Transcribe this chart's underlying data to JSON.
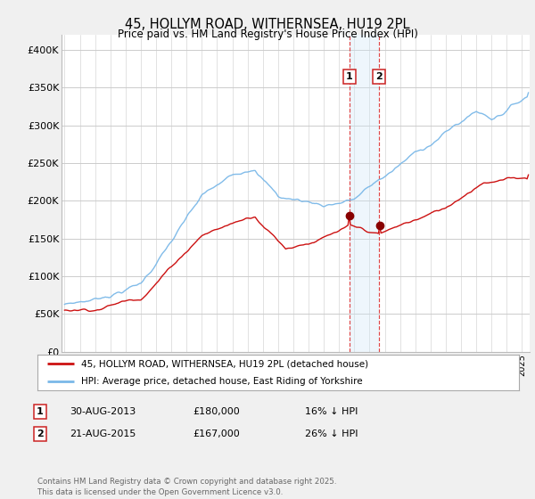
{
  "title_line1": "45, HOLLYM ROAD, WITHERNSEA, HU19 2PL",
  "title_line2": "Price paid vs. HM Land Registry's House Price Index (HPI)",
  "ylim": [
    0,
    420000
  ],
  "xlim_year": [
    1994.8,
    2025.5
  ],
  "yticks": [
    0,
    50000,
    100000,
    150000,
    200000,
    250000,
    300000,
    350000,
    400000
  ],
  "ytick_labels": [
    "£0",
    "£50K",
    "£100K",
    "£150K",
    "£200K",
    "£250K",
    "£300K",
    "£350K",
    "£400K"
  ],
  "hpi_color": "#7ab8e8",
  "price_color": "#cc1111",
  "sale1_year": 2013.66,
  "sale1_price": 180000,
  "sale1_date": "30-AUG-2013",
  "sale1_hpi_diff": "16% ↓ HPI",
  "sale2_year": 2015.64,
  "sale2_price": 167000,
  "sale2_date": "21-AUG-2015",
  "sale2_hpi_diff": "26% ↓ HPI",
  "legend_label1": "45, HOLLYM ROAD, WITHERNSEA, HU19 2PL (detached house)",
  "legend_label2": "HPI: Average price, detached house, East Riding of Yorkshire",
  "footer": "Contains HM Land Registry data © Crown copyright and database right 2025.\nThis data is licensed under the Open Government Licence v3.0.",
  "bg_color": "#f0f0f0",
  "plot_bg": "#ffffff",
  "grid_color": "#cccccc",
  "shade_color": "#d0e8f8"
}
